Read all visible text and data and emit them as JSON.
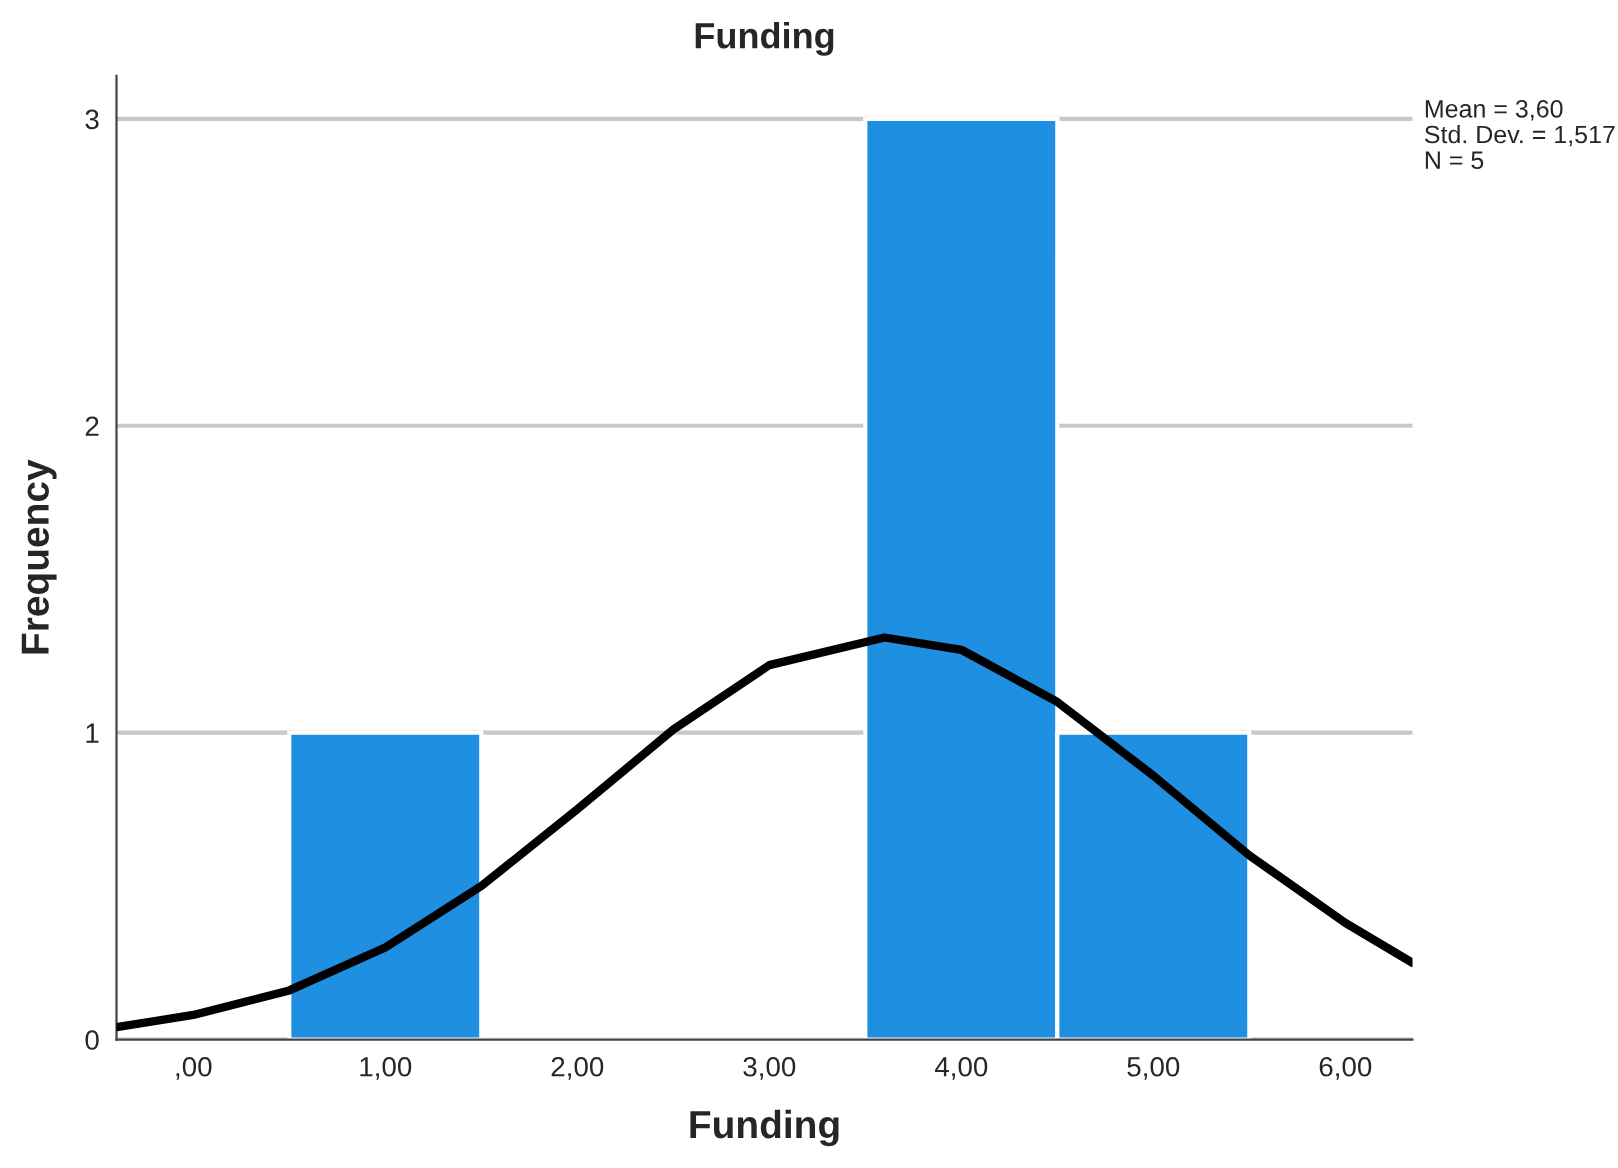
{
  "chart_data": {
    "type": "histogram",
    "title": "Funding",
    "xlabel": "Funding",
    "ylabel": "Frequency",
    "bins": [
      0.5,
      1.5,
      2.5,
      3.5,
      4.5,
      5.5
    ],
    "values": [
      1,
      0,
      0,
      3,
      1
    ],
    "color": "#1e8fe1",
    "series": [
      {
        "type": "line",
        "color": "#000000",
        "x": [
          -0.4,
          0,
          0.5,
          1,
          1.5,
          2,
          2.5,
          3,
          3.6,
          4,
          4.5,
          5,
          5.5,
          6,
          6.35
        ],
        "values": [
          0.04,
          0.08,
          0.16,
          0.3,
          0.5,
          0.75,
          1.01,
          1.22,
          1.31,
          1.27,
          1.1,
          0.86,
          0.6,
          0.38,
          0.25
        ]
      }
    ],
    "xlim": [
      -0.4,
      6.35
    ],
    "ylim": [
      0,
      3.14
    ],
    "xticks": [
      {
        "value": 0,
        "label": ",00"
      },
      {
        "value": 1,
        "label": "1,00"
      },
      {
        "value": 2,
        "label": "2,00"
      },
      {
        "value": 3,
        "label": "3,00"
      },
      {
        "value": 4,
        "label": "4,00"
      },
      {
        "value": 5,
        "label": "5,00"
      },
      {
        "value": 6,
        "label": "6,00"
      }
    ],
    "yticks": [
      0,
      1,
      2,
      3
    ],
    "grid": "y",
    "annotations": [
      "Mean = 3,60",
      "Std. Dev. = 1,517",
      "N = 5"
    ]
  }
}
